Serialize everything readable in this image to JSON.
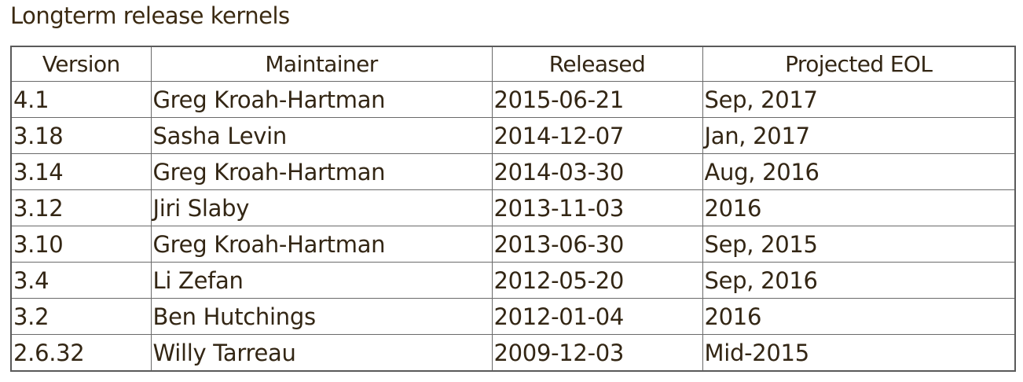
{
  "title": "Longterm release kernels",
  "table": {
    "headers": [
      "Version",
      "Maintainer",
      "Released",
      "Projected EOL"
    ],
    "rows": [
      {
        "version": "4.1",
        "maintainer": "Greg Kroah-Hartman",
        "released": "2015-06-21",
        "eol": "Sep, 2017"
      },
      {
        "version": "3.18",
        "maintainer": "Sasha Levin",
        "released": "2014-12-07",
        "eol": "Jan, 2017"
      },
      {
        "version": "3.14",
        "maintainer": "Greg Kroah-Hartman",
        "released": "2014-03-30",
        "eol": "Aug, 2016"
      },
      {
        "version": "3.12",
        "maintainer": "Jiri Slaby",
        "released": "2013-11-03",
        "eol": "2016"
      },
      {
        "version": "3.10",
        "maintainer": "Greg Kroah-Hartman",
        "released": "2013-06-30",
        "eol": "Sep, 2015"
      },
      {
        "version": "3.4",
        "maintainer": "Li Zefan",
        "released": "2012-05-20",
        "eol": "Sep, 2016"
      },
      {
        "version": "3.2",
        "maintainer": "Ben Hutchings",
        "released": "2012-01-04",
        "eol": "2016"
      },
      {
        "version": "2.6.32",
        "maintainer": "Willy Tarreau",
        "released": "2009-12-03",
        "eol": "Mid-2015"
      }
    ]
  }
}
